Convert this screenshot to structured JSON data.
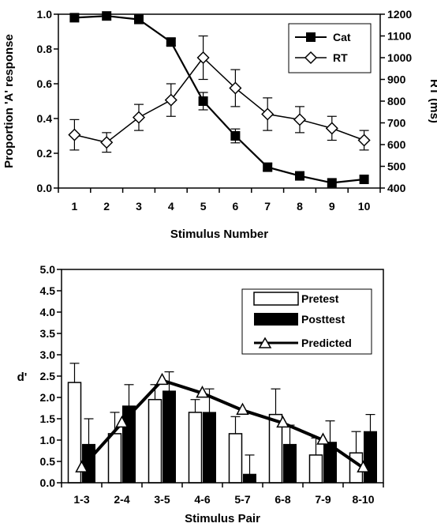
{
  "chart_data": [
    {
      "type": "line",
      "x": [
        1,
        2,
        3,
        4,
        5,
        6,
        7,
        8,
        9,
        10
      ],
      "xlabel": "Stimulus Number",
      "ylabel": "Proportion 'A' response",
      "ylabel_right": "RT (ms)",
      "ylim": [
        0,
        1
      ],
      "ylim_right": [
        400,
        1200
      ],
      "yticks": [
        "0.0",
        "0.2",
        "0.4",
        "0.6",
        "0.8",
        "1.0"
      ],
      "yticks_right": [
        "400",
        "500",
        "600",
        "700",
        "800",
        "900",
        "1000",
        "1100",
        "1200"
      ],
      "legend_position": "top-right",
      "series": [
        {
          "name": "Cat",
          "axis": "left",
          "marker": "filled-square",
          "values": [
            0.98,
            0.99,
            0.97,
            0.84,
            0.5,
            0.3,
            0.12,
            0.07,
            0.03,
            0.05
          ],
          "errors": [
            0,
            0,
            0,
            0.02,
            0.05,
            0.04,
            0.02,
            0,
            0,
            0
          ]
        },
        {
          "name": "RT",
          "axis": "right",
          "marker": "open-diamond",
          "values": [
            645,
            610,
            725,
            805,
            1000,
            860,
            740,
            715,
            675,
            620
          ],
          "errors": [
            70,
            45,
            60,
            75,
            100,
            85,
            75,
            60,
            55,
            45
          ]
        }
      ]
    },
    {
      "type": "bar",
      "categories": [
        "1-3",
        "2-4",
        "3-5",
        "4-6",
        "5-7",
        "6-8",
        "7-9",
        "8-10"
      ],
      "xlabel": "Stimulus Pair",
      "ylabel": "d'",
      "ylim": [
        0,
        5
      ],
      "yticks": [
        "0.0",
        "0.5",
        "1.0",
        "1.5",
        "2.0",
        "2.5",
        "3.0",
        "3.5",
        "4.0",
        "4.5",
        "5.0"
      ],
      "legend_position": "top-right",
      "series": [
        {
          "name": "Pretest",
          "style": "open-bar",
          "values": [
            2.35,
            1.15,
            1.95,
            1.65,
            1.15,
            1.6,
            0.65,
            0.7
          ],
          "errors": [
            0.45,
            0.5,
            0.35,
            0.3,
            0.4,
            0.6,
            0.4,
            0.5
          ]
        },
        {
          "name": "Posttest",
          "style": "filled-bar",
          "values": [
            0.9,
            1.8,
            2.15,
            1.65,
            0.2,
            0.9,
            0.95,
            1.2
          ],
          "errors": [
            0.6,
            0.5,
            0.45,
            0.55,
            0.45,
            0.45,
            0.5,
            0.4
          ]
        },
        {
          "name": "Predicted",
          "style": "line-open-triangle",
          "values": [
            0.35,
            1.4,
            2.4,
            2.1,
            1.7,
            1.4,
            1.0,
            0.35
          ]
        }
      ]
    }
  ]
}
